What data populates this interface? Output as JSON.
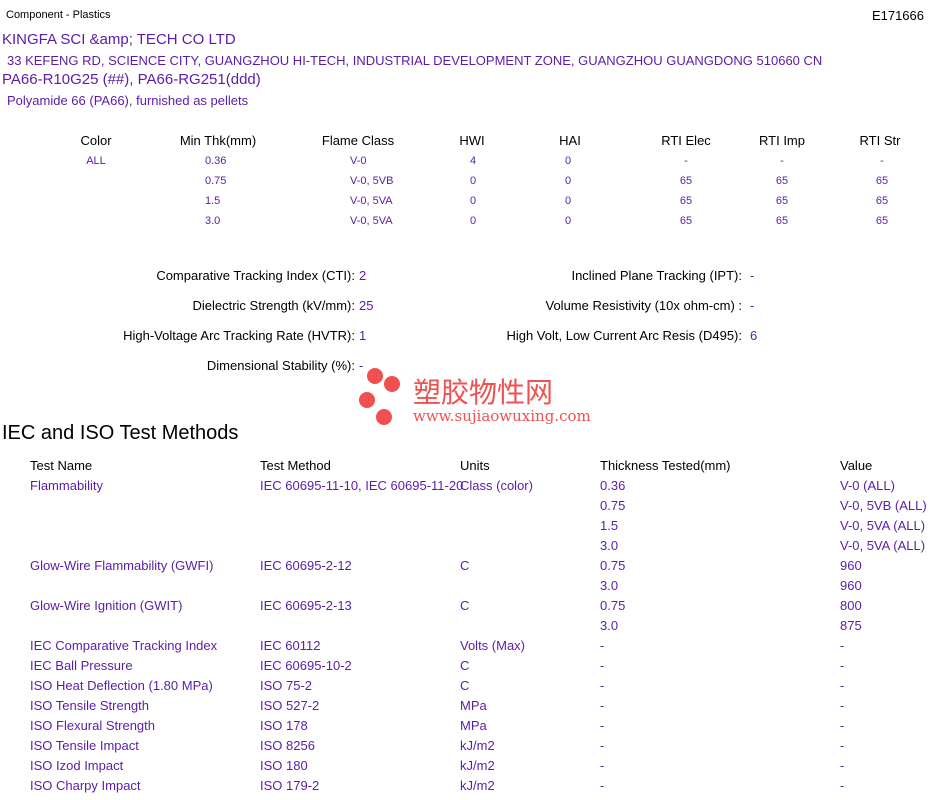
{
  "header": {
    "category": "Component - Plastics",
    "file_number": "E171666"
  },
  "company": {
    "name": "KINGFA SCI &amp; TECH CO LTD",
    "address": "33 KEFENG RD, SCIENCE CITY, GUANGZHOU HI-TECH, INDUSTRIAL DEVELOPMENT ZONE, GUANGZHOU  GUANGDONG  510660 CN"
  },
  "product": {
    "grades": "PA66-R10G25 (##), PA66-RG251(ddd)",
    "description": "Polyamide 66 (PA66), furnished as pellets"
  },
  "ratings": {
    "columns": [
      "Color",
      "Min Thk(mm)",
      "Flame Class",
      "HWI",
      "HAI",
      "RTI Elec",
      "RTI Imp",
      "RTI Str"
    ],
    "rows": [
      [
        "ALL",
        "0.36",
        "V-0",
        "4",
        "0",
        "-",
        "-",
        "-"
      ],
      [
        "",
        "0.75",
        "V-0, 5VB",
        "0",
        "0",
        "65",
        "65",
        "65"
      ],
      [
        "",
        "1.5",
        "V-0, 5VA",
        "0",
        "0",
        "65",
        "65",
        "65"
      ],
      [
        "",
        "3.0",
        "V-0, 5VA",
        "0",
        "0",
        "65",
        "65",
        "65"
      ]
    ]
  },
  "properties": {
    "left": [
      {
        "label": "Comparative Tracking Index (CTI):",
        "value": "2"
      },
      {
        "label": "Dielectric Strength (kV/mm):",
        "value": "25"
      },
      {
        "label": "High-Voltage Arc Tracking Rate (HVTR):",
        "value": "1"
      },
      {
        "label": "Dimensional Stability (%):",
        "value": "-"
      }
    ],
    "right": [
      {
        "label": "Inclined Plane Tracking (IPT):",
        "value": "-"
      },
      {
        "label": "Volume Resistivity (10x ohm-cm) :",
        "value": "-"
      },
      {
        "label": "High Volt, Low Current Arc Resis (D495):",
        "value": "6"
      }
    ]
  },
  "watermark": {
    "text_cn": "塑胶物性网",
    "url": "www.sujiaowuxing.com",
    "color": "#f05050"
  },
  "iec": {
    "title": "IEC and ISO Test Methods",
    "columns": [
      "Test Name",
      "Test Method",
      "Units",
      "Thickness Tested(mm)",
      "Value"
    ],
    "rows": [
      [
        "Flammability",
        "IEC 60695-11-10, IEC 60695-11-20",
        "Class (color)",
        "0.36",
        "V-0 (ALL)"
      ],
      [
        "",
        "",
        "",
        "0.75",
        "V-0, 5VB (ALL)"
      ],
      [
        "",
        "",
        "",
        "1.5",
        "V-0, 5VA (ALL)"
      ],
      [
        "",
        "",
        "",
        "3.0",
        "V-0, 5VA (ALL)"
      ],
      [
        "Glow-Wire Flammability (GWFI)",
        "IEC 60695-2-12",
        "C",
        "0.75",
        "960"
      ],
      [
        "",
        "",
        "",
        "3.0",
        "960"
      ],
      [
        "Glow-Wire Ignition (GWIT)",
        "IEC 60695-2-13",
        "C",
        "0.75",
        "800"
      ],
      [
        "",
        "",
        "",
        "3.0",
        "875"
      ],
      [
        "IEC Comparative Tracking Index",
        "IEC 60112",
        "Volts (Max)",
        "-",
        "-"
      ],
      [
        "IEC Ball Pressure",
        "IEC 60695-10-2",
        "C",
        "-",
        "-"
      ],
      [
        "ISO Heat Deflection (1.80 MPa)",
        "ISO 75-2",
        "C",
        "-",
        "-"
      ],
      [
        "ISO Tensile Strength",
        "ISO 527-2",
        "MPa",
        "-",
        "-"
      ],
      [
        "ISO Flexural Strength",
        "ISO 178",
        "MPa",
        "-",
        "-"
      ],
      [
        "ISO Tensile Impact",
        "ISO 8256",
        "kJ/m2",
        "-",
        "-"
      ],
      [
        "ISO Izod Impact",
        "ISO 180",
        "kJ/m2",
        "-",
        "-"
      ],
      [
        "ISO Charpy Impact",
        "ISO 179-2",
        "kJ/m2",
        "-",
        "-"
      ]
    ]
  }
}
